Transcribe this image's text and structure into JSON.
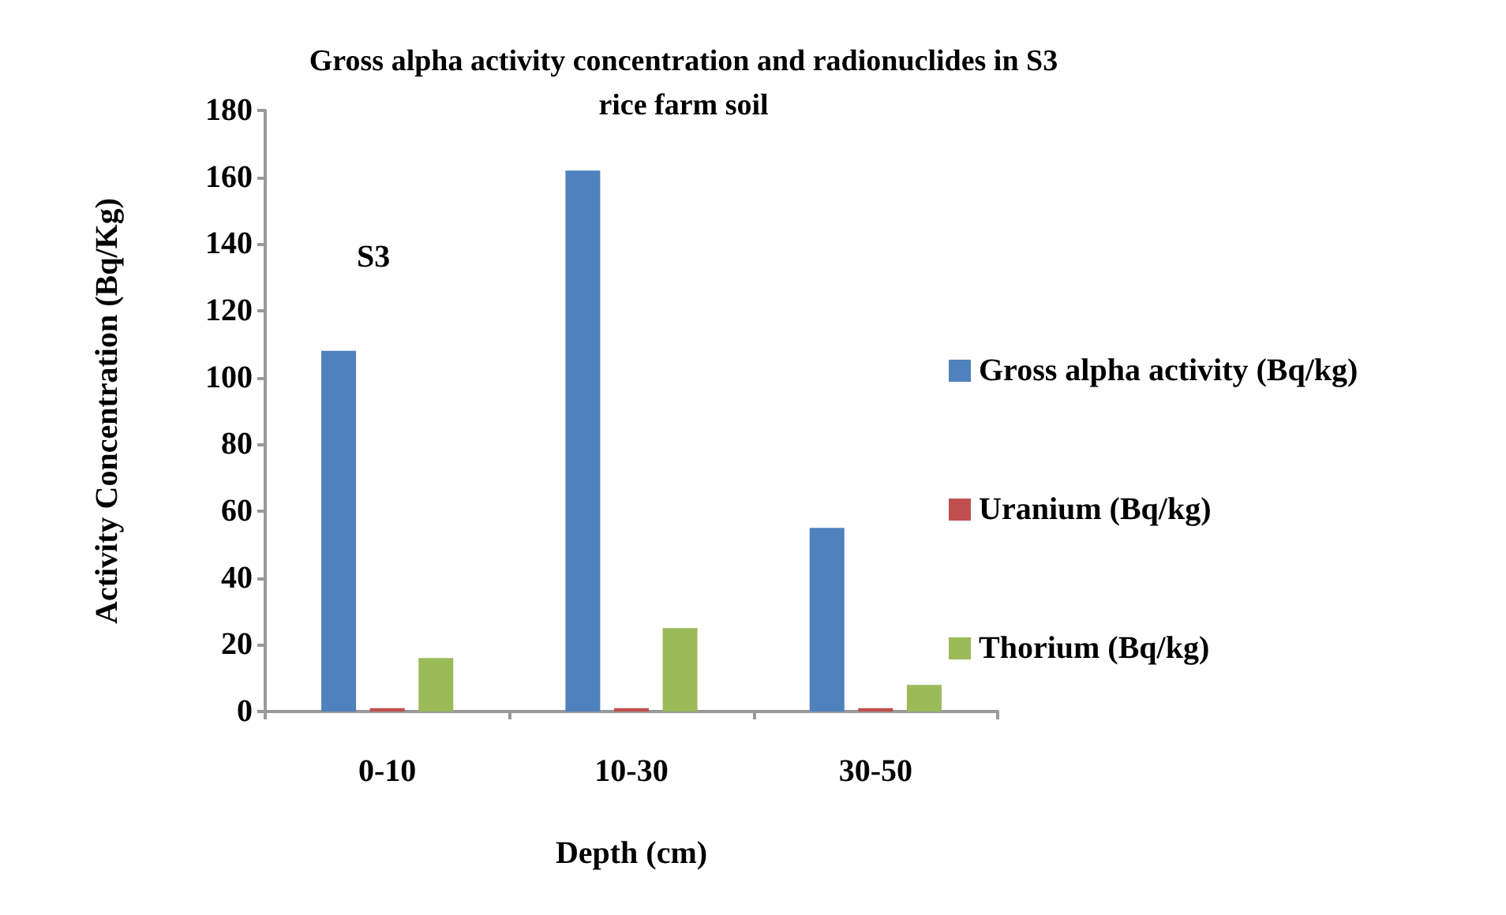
{
  "chart_data": {
    "type": "bar",
    "title": "Gross alpha activity concentration and radionuclides in S3\nrice farm soil",
    "xlabel": "Depth (cm)",
    "ylabel": "Activity Concentration (Bq/Kg)",
    "categories": [
      "0-10",
      "10-30",
      "30-50"
    ],
    "series": [
      {
        "name": "Gross alpha activity (Bq/kg)",
        "color": "#4f81bd",
        "values": [
          108,
          162,
          55
        ]
      },
      {
        "name": "Uranium (Bq/kg)",
        "color": "#c0504d",
        "values": [
          1,
          1,
          1
        ]
      },
      {
        "name": "Thorium (Bq/kg)",
        "color": "#9bbb59",
        "values": [
          16,
          25,
          8
        ]
      }
    ],
    "ylim": [
      0,
      180
    ],
    "yticks": [
      0,
      20,
      40,
      60,
      80,
      100,
      120,
      140,
      160,
      180
    ],
    "grid": false,
    "legend": "right",
    "annotations": [
      "S3"
    ]
  }
}
